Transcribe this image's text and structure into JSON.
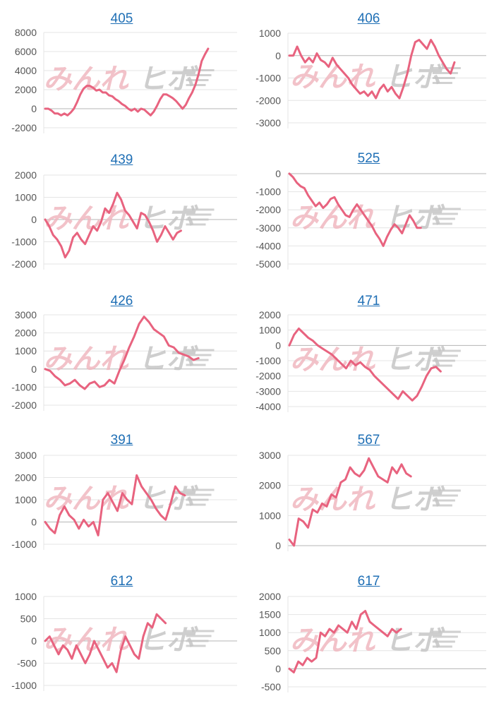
{
  "colors": {
    "line": "#e8637f",
    "grid": "#e4e4e4",
    "axis": "#b5b5b5",
    "tick_text": "#555555",
    "title_link": "#1f6fb5",
    "watermark_pink": "#f0b8c0",
    "watermark_gray": "#c6c6c6"
  },
  "watermark": {
    "left_text": "みんれ",
    "right_text": "ヒボ"
  },
  "chart_data": [
    {
      "type": "line",
      "title": "405",
      "yticks": [
        8000,
        6000,
        4000,
        2000,
        0,
        -2000
      ],
      "ylim": [
        -2000,
        8000
      ],
      "series": [
        {
          "values": [
            0,
            0,
            -200,
            -500,
            -500,
            -700,
            -500,
            -700,
            -400,
            0,
            700,
            1500,
            2100,
            2400,
            2400,
            2200,
            1900,
            2000,
            1700,
            1700,
            1400,
            1300,
            1000,
            800,
            500,
            300,
            0,
            -200,
            0,
            -300,
            0,
            -100,
            -400,
            -700,
            -300,
            300,
            1000,
            1500,
            1500,
            1300,
            1100,
            800,
            400,
            0,
            400,
            1100,
            1700,
            2500,
            3600,
            5000,
            5700,
            6300
          ]
        }
      ]
    },
    {
      "type": "line",
      "title": "406",
      "yticks": [
        1000,
        0,
        -1000,
        -2000,
        -3000
      ],
      "ylim": [
        -3000,
        1000
      ],
      "series": [
        {
          "values": [
            0,
            0,
            400,
            0,
            -300,
            -100,
            -300,
            100,
            -200,
            -300,
            -500,
            -100,
            -400,
            -600,
            -800,
            -1000,
            -1300,
            -1500,
            -1700,
            -1600,
            -1800,
            -1600,
            -1900,
            -1500,
            -1300,
            -1600,
            -1400,
            -1700,
            -1900,
            -1400,
            -800,
            0,
            600,
            700,
            500,
            300,
            700,
            400,
            0,
            -300,
            -600,
            -800,
            -300
          ]
        }
      ]
    },
    {
      "type": "line",
      "title": "439",
      "yticks": [
        2000,
        1000,
        0,
        -1000,
        -2000
      ],
      "ylim": [
        -2000,
        2000
      ],
      "series": [
        {
          "values": [
            0,
            -300,
            -700,
            -900,
            -1200,
            -1700,
            -1400,
            -800,
            -600,
            -900,
            -1100,
            -700,
            -300,
            -500,
            -100,
            500,
            300,
            700,
            1200,
            900,
            400,
            200,
            -100,
            -400,
            300,
            200,
            -100,
            -500,
            -1000,
            -700,
            -300,
            -600,
            -900,
            -600,
            -500
          ]
        }
      ]
    },
    {
      "type": "line",
      "title": "525",
      "yticks": [
        0,
        -1000,
        -2000,
        -3000,
        -4000,
        -5000
      ],
      "ylim": [
        -5000,
        0
      ],
      "series": [
        {
          "values": [
            0,
            -200,
            -500,
            -700,
            -800,
            -1200,
            -1500,
            -1800,
            -1600,
            -1900,
            -1700,
            -1400,
            -1300,
            -1700,
            -2000,
            -2300,
            -2400,
            -2000,
            -1700,
            -2000,
            -2300,
            -2600,
            -2900,
            -3300,
            -3600,
            -4000,
            -3500,
            -3100,
            -2800,
            -3000,
            -3300,
            -2800,
            -2300,
            -2600,
            -3000,
            -3000
          ]
        }
      ]
    },
    {
      "type": "line",
      "title": "426",
      "yticks": [
        3000,
        2000,
        1000,
        0,
        -1000,
        -2000
      ],
      "ylim": [
        -2000,
        3000
      ],
      "series": [
        {
          "values": [
            0,
            -100,
            -400,
            -600,
            -900,
            -800,
            -600,
            -900,
            -1100,
            -800,
            -700,
            -1000,
            -900,
            -600,
            -800,
            -100,
            500,
            1200,
            1800,
            2500,
            2900,
            2600,
            2200,
            2000,
            1800,
            1300,
            1200,
            900,
            800,
            700,
            500,
            600
          ]
        }
      ]
    },
    {
      "type": "line",
      "title": "471",
      "yticks": [
        2000,
        1000,
        0,
        -1000,
        -2000,
        -3000,
        -4000
      ],
      "ylim": [
        -4000,
        2000
      ],
      "series": [
        {
          "values": [
            0,
            700,
            1100,
            800,
            500,
            300,
            0,
            -200,
            -400,
            -600,
            -900,
            -1200,
            -1500,
            -1000,
            -1300,
            -1100,
            -1400,
            -1600,
            -2000,
            -2300,
            -2600,
            -2900,
            -3200,
            -3500,
            -3000,
            -3300,
            -3600,
            -3300,
            -2700,
            -2000,
            -1500,
            -1400,
            -1700
          ]
        }
      ]
    },
    {
      "type": "line",
      "title": "391",
      "yticks": [
        3000,
        2000,
        1000,
        0,
        -1000
      ],
      "ylim": [
        -1000,
        3000
      ],
      "series": [
        {
          "values": [
            0,
            -300,
            -500,
            300,
            700,
            300,
            100,
            -300,
            100,
            -200,
            0,
            -600,
            1000,
            1300,
            900,
            500,
            1300,
            1000,
            800,
            2100,
            1600,
            1300,
            1000,
            600,
            300,
            100,
            800,
            1600,
            1300,
            1200
          ]
        }
      ]
    },
    {
      "type": "line",
      "title": "567",
      "yticks": [
        3000,
        2000,
        1000,
        0
      ],
      "ylim": [
        0,
        3000
      ],
      "series": [
        {
          "values": [
            200,
            0,
            900,
            800,
            600,
            1200,
            1100,
            1400,
            1300,
            1700,
            1600,
            2100,
            2200,
            2600,
            2400,
            2300,
            2500,
            2900,
            2600,
            2300,
            2200,
            2100,
            2600,
            2400,
            2700,
            2400,
            2300
          ]
        }
      ]
    },
    {
      "type": "line",
      "title": "612",
      "yticks": [
        1000,
        500,
        0,
        -500,
        -1000
      ],
      "ylim": [
        -1000,
        1000
      ],
      "series": [
        {
          "values": [
            0,
            100,
            -100,
            -300,
            -100,
            -200,
            -400,
            -100,
            -300,
            -500,
            -300,
            0,
            -200,
            -400,
            -600,
            -500,
            -700,
            -200,
            100,
            -100,
            -300,
            -400,
            100,
            400,
            300,
            600,
            500,
            400
          ]
        }
      ]
    },
    {
      "type": "line",
      "title": "617",
      "yticks": [
        2000,
        1500,
        1000,
        500,
        0,
        -500
      ],
      "ylim": [
        -500,
        2000
      ],
      "series": [
        {
          "values": [
            0,
            -100,
            200,
            100,
            300,
            200,
            300,
            1000,
            900,
            1100,
            1000,
            1200,
            1100,
            1000,
            1300,
            1100,
            1500,
            1600,
            1300,
            1200,
            1100,
            1000,
            900,
            1100,
            1000,
            1100
          ]
        }
      ]
    }
  ]
}
